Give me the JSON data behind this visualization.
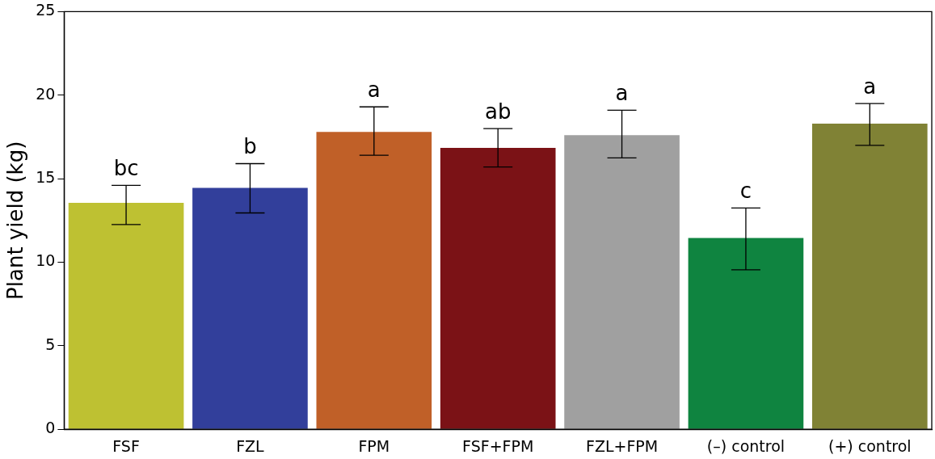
{
  "chart_data": {
    "type": "bar",
    "ylabel": "Plant yield (kg)",
    "categories": [
      "FSF",
      "FZL",
      "FPM",
      "FSF+FPM",
      "FZL+FPM",
      "(–) control",
      "(+) control"
    ],
    "values": [
      13.55,
      14.45,
      17.8,
      16.85,
      17.6,
      11.45,
      18.3
    ],
    "colors": [
      "#bec132",
      "#323f9b",
      "#c06028",
      "#7b1216",
      "#a0a0a0",
      "#0f8440",
      "#808235"
    ],
    "errors": [
      [
        12.25,
        14.6
      ],
      [
        12.95,
        15.9
      ],
      [
        16.4,
        19.3
      ],
      [
        15.7,
        18.0
      ],
      [
        16.25,
        19.1
      ],
      [
        9.55,
        13.25
      ],
      [
        17.0,
        19.5
      ]
    ],
    "ylim": [
      0,
      25
    ],
    "yticks": [
      0,
      5,
      10,
      15,
      20,
      25
    ],
    "grid": false,
    "legend": false,
    "annotations": [
      {
        "text": "bc",
        "x": "FSF",
        "y": 14.6
      },
      {
        "text": "b",
        "x": "FZL",
        "y": 15.9
      },
      {
        "text": "a",
        "x": "FPM",
        "y": 19.3
      },
      {
        "text": "ab",
        "x": "FSF+FPM",
        "y": 18.0
      },
      {
        "text": "a",
        "x": "FZL+FPM",
        "y": 19.1
      },
      {
        "text": "c",
        "x": "(–) control",
        "y": 13.25
      },
      {
        "text": "a",
        "x": "(+) control",
        "y": 19.5
      }
    ]
  }
}
